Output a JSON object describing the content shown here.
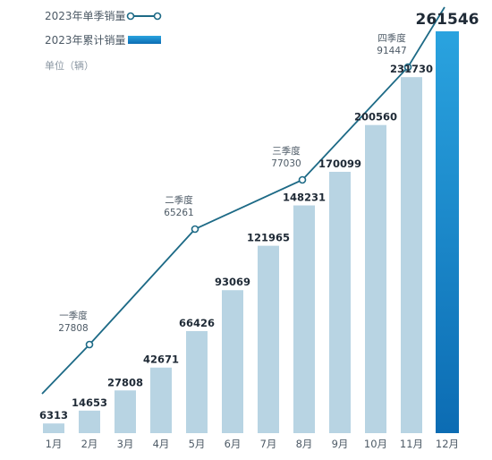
{
  "legend": {
    "quarterly_label": "2023年单季销量",
    "cumulative_label": "2023年累计销量",
    "unit": "单位（辆）"
  },
  "colors": {
    "bar": "#b8d4e3",
    "bar_highlight_top": "#2aa3df",
    "bar_highlight_bottom": "#0c6cb3",
    "line": "#1d6a86"
  },
  "chart_data": {
    "type": "bar",
    "categories": [
      "1月",
      "2月",
      "3月",
      "4月",
      "5月",
      "6月",
      "7月",
      "8月",
      "9月",
      "10月",
      "11月",
      "12月"
    ],
    "series": [
      {
        "name": "2023年累计销量",
        "values": [
          6313,
          14653,
          27808,
          42671,
          66426,
          93069,
          121965,
          148231,
          170099,
          200560,
          231730,
          261546
        ]
      }
    ],
    "line_series": {
      "name": "2023年单季销量",
      "points": [
        {
          "category": "3月",
          "value": 27808,
          "quarter": "一季度"
        },
        {
          "category": "6月",
          "value": 65261,
          "quarter": "二季度"
        },
        {
          "category": "9月",
          "value": 77030,
          "quarter": "三季度"
        },
        {
          "category": "12月",
          "value": 91447,
          "quarter": "四季度"
        }
      ]
    }
  }
}
